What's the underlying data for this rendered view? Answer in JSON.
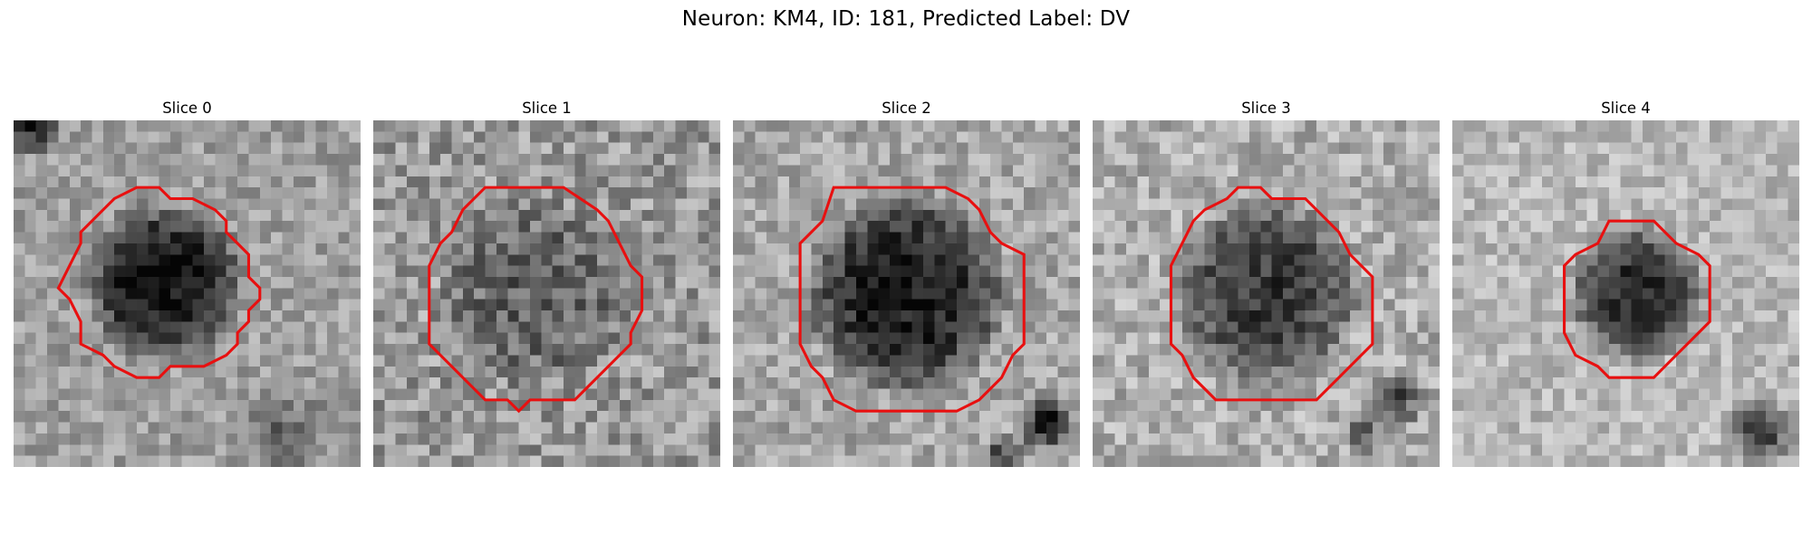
{
  "figure": {
    "title": "Neuron: KM4, ID: 181, Predicted Label: DV"
  },
  "colors": {
    "contour": "#e81010",
    "background": "#ffffff"
  },
  "slices": [
    {
      "title": "Slice 0",
      "image": "grayscale microscopy patch with dark round cell body",
      "contour_color": "red"
    },
    {
      "title": "Slice 1",
      "image": "grayscale microscopy patch with mid-gray round cell body",
      "contour_color": "red"
    },
    {
      "title": "Slice 2",
      "image": "grayscale microscopy patch with large dark round cell body",
      "contour_color": "red"
    },
    {
      "title": "Slice 3",
      "image": "grayscale microscopy patch with dark round cell body",
      "contour_color": "red"
    },
    {
      "title": "Slice 4",
      "image": "grayscale microscopy patch with small dark round cell body",
      "contour_color": "red"
    }
  ]
}
